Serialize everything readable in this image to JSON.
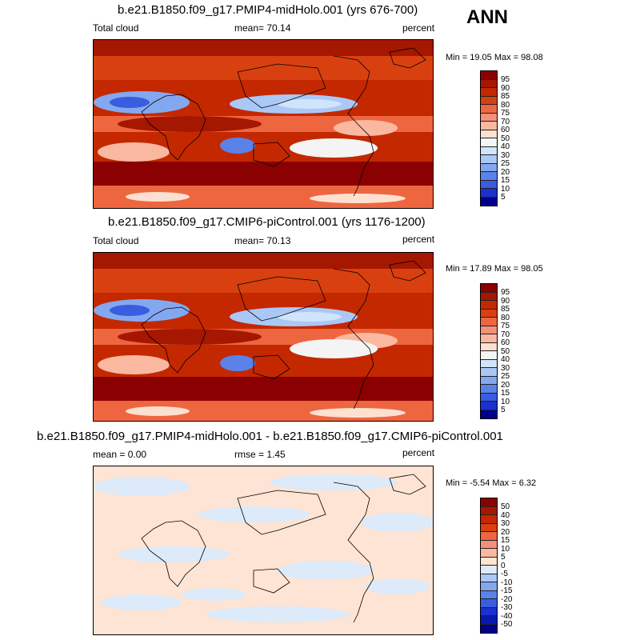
{
  "season": "ANN",
  "panels": [
    {
      "title": "b.e21.B1850.f09_g17.PMIP4-midHolo.001 (yrs 676-700)",
      "left_label": "Total cloud",
      "center_label": "mean=  70.14",
      "right_label": "percent",
      "minmax": "Min =  19.05 Max =  98.08",
      "colorbar_labels": [
        "95",
        "90",
        "85",
        "80",
        "75",
        "70",
        "60",
        "50",
        "40",
        "30",
        "25",
        "20",
        "15",
        "10",
        "5"
      ],
      "colors": [
        "#8b0000",
        "#a51700",
        "#c42800",
        "#d94010",
        "#ee6640",
        "#f4907a",
        "#fab8a0",
        "#fde0d0",
        "#f4f4f4",
        "#d0e4fb",
        "#aac8f6",
        "#84a8f0",
        "#5a82e8",
        "#3a5ce0",
        "#1a30d0",
        "#00008c"
      ]
    },
    {
      "title": "b.e21.B1850.f09_g17.CMIP6-piControl.001 (yrs 1176-1200)",
      "left_label": "Total cloud",
      "center_label": "mean=  70.13",
      "right_label": "percent",
      "minmax": "Min =  17.89 Max =  98.05",
      "colorbar_labels": [
        "95",
        "90",
        "85",
        "80",
        "75",
        "70",
        "60",
        "50",
        "40",
        "30",
        "25",
        "20",
        "15",
        "10",
        "5"
      ],
      "colors": [
        "#8b0000",
        "#a51700",
        "#c42800",
        "#d94010",
        "#ee6640",
        "#f4907a",
        "#fab8a0",
        "#fde0d0",
        "#f4f4f4",
        "#d0e4fb",
        "#aac8f6",
        "#84a8f0",
        "#5a82e8",
        "#3a5ce0",
        "#1a30d0",
        "#00008c"
      ]
    },
    {
      "title": "b.e21.B1850.f09_g17.PMIP4-midHolo.001 - b.e21.B1850.f09_g17.CMIP6-piControl.001",
      "left_label": "mean =   0.00",
      "center_label": "rmse =   1.45",
      "right_label": "percent",
      "minmax": "Min =  -5.54 Max =   6.32",
      "colorbar_labels": [
        "50",
        "40",
        "30",
        "20",
        "15",
        "10",
        "5",
        "0",
        "-5",
        "-10",
        "-15",
        "-20",
        "-30",
        "-40",
        "-50"
      ],
      "colors": [
        "#8b0000",
        "#a51700",
        "#c42800",
        "#d94010",
        "#ee6640",
        "#f4907a",
        "#fab8a0",
        "#fde4d4",
        "#dceaf9",
        "#aac8f6",
        "#84a8f0",
        "#5a82e8",
        "#3a5ce0",
        "#1a30d0",
        "#0a18b0",
        "#00008c"
      ]
    }
  ]
}
